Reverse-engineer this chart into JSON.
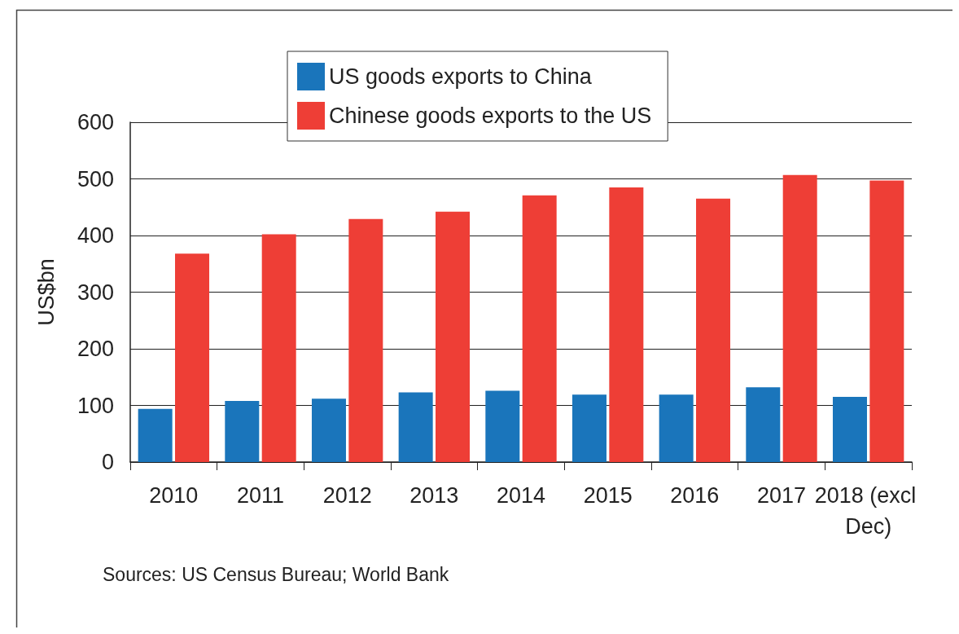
{
  "chart_data": {
    "type": "bar",
    "ylabel": "US$bn",
    "categories": [
      "2010",
      "2011",
      "2012",
      "2013",
      "2014",
      "2015",
      "2016",
      "2017",
      "2018 (excl Dec)"
    ],
    "series": [
      {
        "name": "US goods exports to China",
        "color": "#1a75bb",
        "values": [
          94,
          108,
          112,
          123,
          126,
          119,
          119,
          132,
          115
        ]
      },
      {
        "name": "Chinese goods exports to the US",
        "color": "#ee3e36",
        "values": [
          368,
          402,
          429,
          442,
          471,
          485,
          465,
          507,
          497
        ]
      }
    ],
    "ylim": [
      0,
      600
    ],
    "yticks": [
      0,
      100,
      200,
      300,
      400,
      500,
      600
    ],
    "grid": "y",
    "legend": "top",
    "annotations": [
      "Sources: US Census Bureau; World Bank"
    ]
  }
}
